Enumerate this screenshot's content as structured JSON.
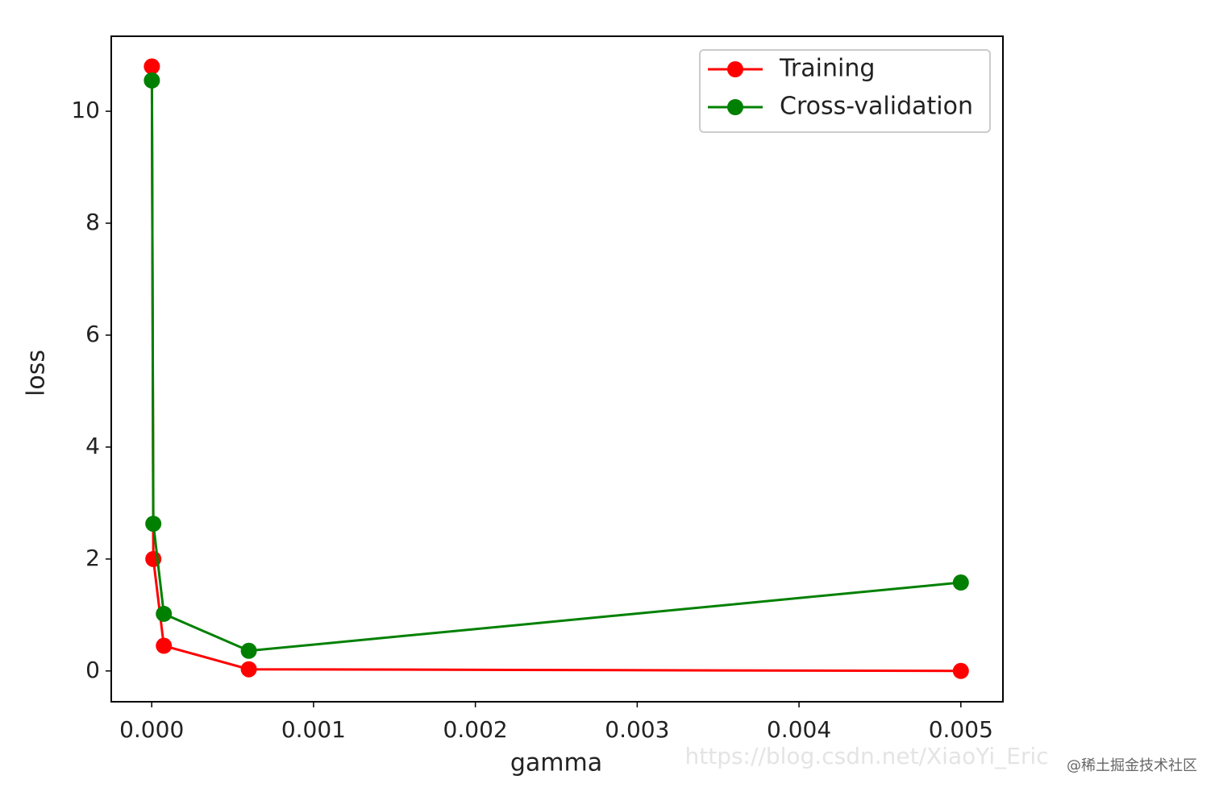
{
  "chart_data": {
    "type": "line",
    "x_label": "gamma",
    "y_label": "loss",
    "x": [
      1e-06,
      1e-05,
      7.5e-05,
      0.0006,
      0.005
    ],
    "series": [
      {
        "name": "Training",
        "color": "#ff0000",
        "values": [
          10.8,
          2.0,
          0.45,
          0.03,
          0.0
        ]
      },
      {
        "name": "Cross-validation",
        "color": "#008000",
        "values": [
          10.55,
          2.63,
          1.02,
          0.36,
          1.58
        ]
      }
    ],
    "xlim": [
      -0.00025,
      0.00526
    ],
    "ylim": [
      -0.55,
      11.34
    ],
    "xticks": [
      {
        "value": 0,
        "label": "0.000"
      },
      0.001,
      0.002,
      0.003,
      0.004,
      0.005
    ],
    "yticks": [
      0,
      2,
      4,
      6,
      8,
      10
    ],
    "legend": "upper right",
    "watermarks": [
      "https://blog.csdn.net/XiaoYi_Eric",
      "@稀土掘金技术社区"
    ]
  }
}
